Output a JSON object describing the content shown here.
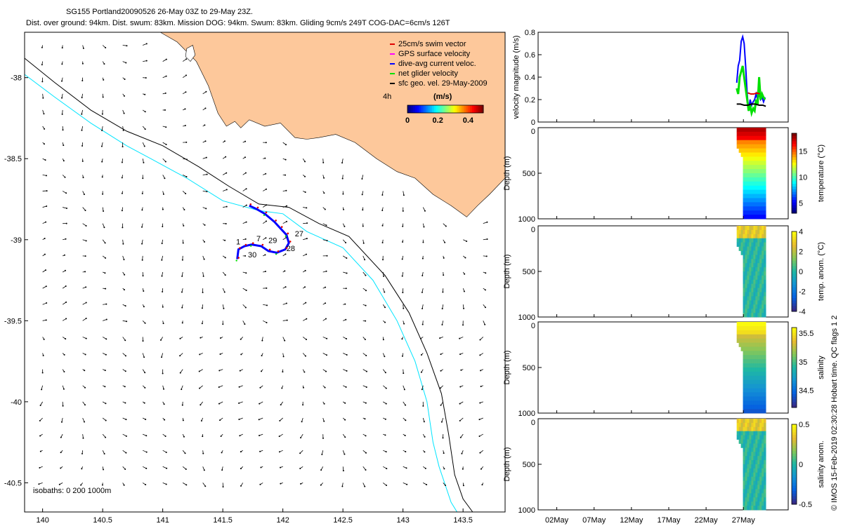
{
  "header": {
    "title": "SG155 Portland20090526 26-May 03Z to 29-May 23Z.",
    "subtitle": "Dist. over ground: 94km. Dist. swum: 83km. Mission DOG: 94km. Swum: 83km. Gliding 9cm/s 249T COG-DAC=6cm/s 126T"
  },
  "colors": {
    "land": "#fdc89b",
    "isobath_200": "#00e5ff",
    "isobath_1000": "#000000",
    "swim": "#e00000",
    "gps": "#ff00ff",
    "dac": "#0000ff",
    "net": "#00e000",
    "geo": "#000000"
  },
  "chart_data": [
    {
      "type": "scatter",
      "name": "map",
      "xlim": [
        139.85,
        143.85
      ],
      "ylim": [
        -40.68,
        -37.72
      ],
      "xticks": [
        140,
        140.5,
        141,
        141.5,
        142,
        142.5,
        143,
        143.5
      ],
      "yticks": [
        -38,
        -38.5,
        -39,
        -39.5,
        -40,
        -40.5
      ],
      "xticklabels": [
        "140",
        "140.5",
        "141",
        "141.5",
        "142",
        "142.5",
        "143",
        "143.5"
      ],
      "yticklabels": [
        "-38",
        "-38.5",
        "-39",
        "-39.5",
        "-40",
        "-40.5"
      ],
      "legend": {
        "placement": "top-right",
        "entries": [
          {
            "label": "25cm/s swim vector",
            "color": "#e00000"
          },
          {
            "label": "GPS surface velocity",
            "color": "#ff00ff"
          },
          {
            "label": "dive-avg current veloc.",
            "color": "#0000ff"
          },
          {
            "label": "net glider velocity",
            "color": "#00e000"
          },
          {
            "label": "sfc geo. vel. 29-May-2009",
            "color": "#000000"
          }
        ]
      },
      "colorbar": {
        "label": "(m/s)",
        "prefix": "4h",
        "range": [
          0,
          0.5
        ],
        "ticks": [
          0,
          0.2,
          0.4
        ],
        "ticklabels": [
          "0",
          "0.2",
          "0.4"
        ]
      },
      "isobath_note": "isobaths: 0   200  1000m",
      "coastline": [
        [
          139.85,
          -37.72
        ],
        [
          140.98,
          -37.72
        ],
        [
          141.12,
          -37.78
        ],
        [
          141.28,
          -37.9
        ],
        [
          141.38,
          -38.05
        ],
        [
          141.46,
          -38.22
        ],
        [
          141.53,
          -38.3
        ],
        [
          141.6,
          -38.27
        ],
        [
          141.65,
          -38.31
        ],
        [
          141.72,
          -38.26
        ],
        [
          141.85,
          -38.3
        ],
        [
          141.98,
          -38.28
        ],
        [
          142.1,
          -38.37
        ],
        [
          142.2,
          -38.38
        ],
        [
          142.3,
          -38.37
        ],
        [
          142.44,
          -38.35
        ],
        [
          142.6,
          -38.4
        ],
        [
          142.78,
          -38.5
        ],
        [
          142.95,
          -38.58
        ],
        [
          143.1,
          -38.62
        ],
        [
          143.25,
          -38.72
        ],
        [
          143.4,
          -38.79
        ],
        [
          143.53,
          -38.86
        ],
        [
          143.62,
          -38.79
        ],
        [
          143.72,
          -38.72
        ],
        [
          143.85,
          -38.62
        ]
      ],
      "islands": [
        [
          [
            141.2,
            -37.82
          ],
          [
            141.25,
            -37.8
          ],
          [
            141.27,
            -37.86
          ],
          [
            141.23,
            -37.9
          ],
          [
            141.19,
            -37.87
          ]
        ]
      ],
      "isobath_200": [
        [
          139.85,
          -37.98
        ],
        [
          140.1,
          -38.12
        ],
        [
          140.4,
          -38.28
        ],
        [
          140.7,
          -38.42
        ],
        [
          140.9,
          -38.5
        ],
        [
          141.2,
          -38.62
        ],
        [
          141.5,
          -38.76
        ],
        [
          141.8,
          -38.82
        ],
        [
          142.0,
          -38.84
        ],
        [
          142.2,
          -38.95
        ],
        [
          142.5,
          -39.05
        ],
        [
          142.75,
          -39.25
        ],
        [
          142.95,
          -39.5
        ],
        [
          143.1,
          -39.75
        ],
        [
          143.2,
          -40.0
        ],
        [
          143.25,
          -40.25
        ],
        [
          143.3,
          -40.4
        ],
        [
          143.4,
          -40.62
        ],
        [
          143.45,
          -40.68
        ]
      ],
      "isobath_1000": [
        [
          139.85,
          -37.88
        ],
        [
          140.1,
          -38.03
        ],
        [
          140.4,
          -38.2
        ],
        [
          140.7,
          -38.33
        ],
        [
          141.0,
          -38.42
        ],
        [
          141.3,
          -38.55
        ],
        [
          141.55,
          -38.67
        ],
        [
          141.8,
          -38.78
        ],
        [
          142.05,
          -38.8
        ],
        [
          142.3,
          -38.9
        ],
        [
          142.55,
          -38.98
        ],
        [
          142.85,
          -39.22
        ],
        [
          143.05,
          -39.45
        ],
        [
          143.2,
          -39.7
        ],
        [
          143.32,
          -39.95
        ],
        [
          143.38,
          -40.2
        ],
        [
          143.43,
          -40.45
        ],
        [
          143.5,
          -40.6
        ],
        [
          143.58,
          -40.68
        ]
      ],
      "glider_track": [
        [
          141.62,
          -39.12
        ],
        [
          141.63,
          -39.06
        ],
        [
          141.68,
          -39.04
        ],
        [
          141.74,
          -39.03
        ],
        [
          141.82,
          -39.04
        ],
        [
          141.88,
          -39.07
        ],
        [
          141.95,
          -39.08
        ],
        [
          142.02,
          -39.06
        ],
        [
          142.05,
          -39.02
        ],
        [
          142.03,
          -38.97
        ],
        [
          141.98,
          -38.93
        ],
        [
          141.93,
          -38.89
        ],
        [
          141.85,
          -38.84
        ],
        [
          141.78,
          -38.81
        ],
        [
          141.72,
          -38.79
        ]
      ],
      "track_labels": [
        {
          "text": "27",
          "lon": 142.1,
          "lat": -38.98
        },
        {
          "text": "28",
          "lon": 142.03,
          "lat": -39.07
        },
        {
          "text": "29",
          "lon": 141.88,
          "lat": -39.02
        },
        {
          "text": "30",
          "lon": 141.71,
          "lat": -39.11
        },
        {
          "text": "1",
          "lon": 141.61,
          "lat": -39.03
        },
        {
          "text": "7",
          "lon": 141.78,
          "lat": -39.01
        }
      ]
    },
    {
      "type": "line",
      "name": "velocity magnitude",
      "ylabel": "velocity magnitude (m/s)",
      "ylim": [
        0,
        0.8
      ],
      "yticks": [
        0,
        0.2,
        0.4,
        0.6,
        0.8
      ],
      "yticklabels": [
        "0",
        "0.2",
        "0.4",
        "0.6",
        "0.8"
      ],
      "xlim_days": [
        -0.5,
        33
      ],
      "xtick_days": [
        2,
        7,
        12,
        17,
        22,
        27
      ],
      "xticklabels": [
        "02May",
        "07May",
        "12May",
        "17May",
        "22May",
        "27May"
      ],
      "series": [
        {
          "name": "dac",
          "color": "#0000ff",
          "x": [
            26.1,
            26.3,
            26.5,
            26.7,
            26.9,
            27.1,
            27.3,
            27.5,
            27.7,
            27.9,
            28.1,
            28.3,
            28.5,
            28.7,
            28.9,
            29.1,
            29.3,
            29.5,
            29.7,
            29.9
          ],
          "y": [
            0.35,
            0.5,
            0.55,
            0.72,
            0.76,
            0.7,
            0.5,
            0.25,
            0.1,
            0.2,
            0.15,
            0.18,
            0.2,
            0.25,
            0.2,
            0.25,
            0.2,
            0.22,
            0.18,
            0.22
          ]
        },
        {
          "name": "net",
          "color": "#00e000",
          "x": [
            26.1,
            26.3,
            26.5,
            26.7,
            26.9,
            27.1,
            27.3,
            27.5,
            27.7,
            27.9,
            28.1,
            28.3,
            28.5,
            28.7,
            28.9,
            29.1,
            29.3,
            29.5,
            29.7,
            29.9
          ],
          "y": [
            0.3,
            0.25,
            0.4,
            0.45,
            0.5,
            0.4,
            0.3,
            0.2,
            0.1,
            0.15,
            0.08,
            0.12,
            0.1,
            0.2,
            0.15,
            0.4,
            0.2,
            0.25,
            0.22,
            0.2
          ]
        },
        {
          "name": "swim",
          "color": "#e00000",
          "x": [
            27.6,
            28.0,
            28.4,
            28.8,
            29.2
          ],
          "y": [
            0.26,
            0.25,
            0.25,
            0.26,
            0.25
          ]
        },
        {
          "name": "geo",
          "color": "#000000",
          "x": [
            26.1,
            26.6,
            27.1,
            27.6,
            28.1,
            28.6,
            29.1,
            29.6,
            30.0
          ],
          "y": [
            0.16,
            0.16,
            0.15,
            0.15,
            0.16,
            0.16,
            0.15,
            0.15,
            0.14
          ]
        }
      ]
    },
    {
      "type": "heatmap",
      "name": "temperature",
      "ylabel": "Depth (m)",
      "colorbar_label": "temperature (°C)",
      "ylim": [
        1000,
        0
      ],
      "yticks": [
        0,
        500,
        1000
      ],
      "yticklabels": [
        "0",
        "500",
        "1000"
      ],
      "cticks": [
        5,
        10,
        15
      ],
      "cticklabels": [
        "5",
        "10",
        "15"
      ],
      "crange": [
        3,
        18.5
      ]
    },
    {
      "type": "heatmap",
      "name": "temperature anomaly",
      "ylabel": "Depth (m)",
      "colorbar_label": "temp. anom. (°C)",
      "ylim": [
        1000,
        0
      ],
      "yticks": [
        0,
        500,
        1000
      ],
      "yticklabels": [
        "0",
        "500",
        "1000"
      ],
      "cticks": [
        -4,
        -2,
        0,
        2,
        4
      ],
      "cticklabels": [
        "-4",
        "-2",
        "0",
        "2",
        "4"
      ],
      "crange": [
        -4,
        4
      ]
    },
    {
      "type": "heatmap",
      "name": "salinity",
      "ylabel": "Depth (m)",
      "colorbar_label": "salinity",
      "ylim": [
        1000,
        0
      ],
      "yticks": [
        0,
        500,
        1000
      ],
      "yticklabels": [
        "0",
        "500",
        "1000"
      ],
      "cticks": [
        34.5,
        35,
        35.5
      ],
      "cticklabels": [
        "34.5",
        "35",
        "35.5"
      ],
      "crange": [
        34.2,
        35.6
      ]
    },
    {
      "type": "heatmap",
      "name": "salinity anomaly",
      "ylabel": "Depth (m)",
      "colorbar_label": "salinity anom.",
      "ylim": [
        1000,
        0
      ],
      "yticks": [
        0,
        500,
        1000
      ],
      "yticklabels": [
        "0",
        "500",
        "1000"
      ],
      "cticks": [
        -0.5,
        0,
        0.5
      ],
      "cticklabels": [
        "-0.5",
        "0",
        "0.5"
      ],
      "crange": [
        -0.5,
        0.5
      ]
    }
  ],
  "footer": {
    "credit": "© IMOS 15-Feb-2019 02:30:28 Hobart time. QC flags 1  2"
  }
}
